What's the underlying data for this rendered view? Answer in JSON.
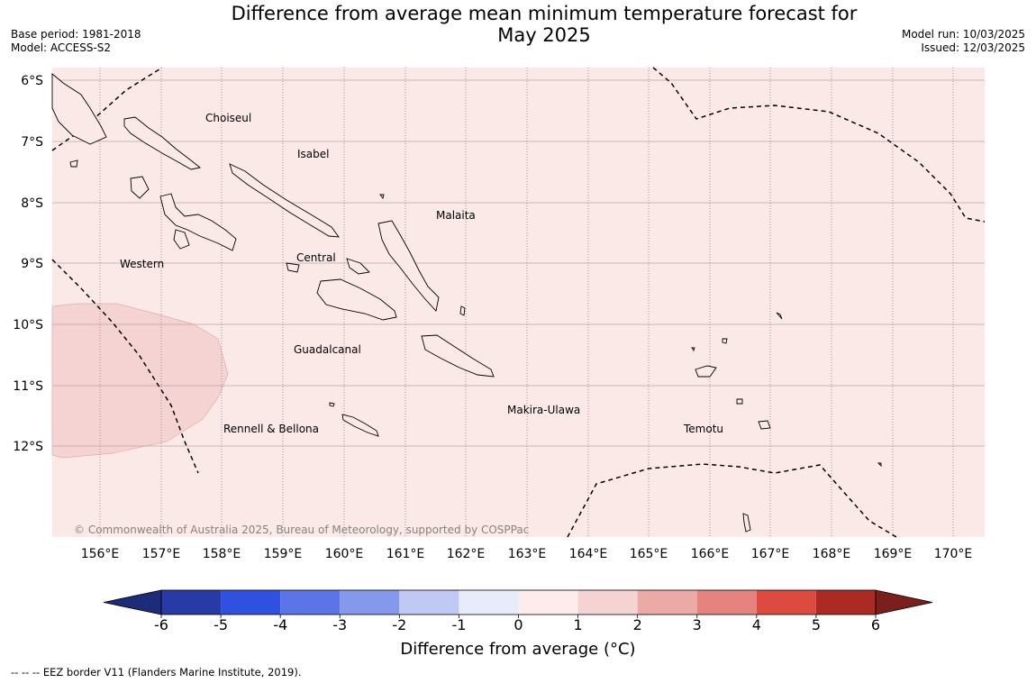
{
  "header": {
    "title_line1": "Difference from average mean minimum temperature forecast for",
    "title_line2": "May 2025",
    "base_period": "Base period: 1981-2018",
    "model": "Model: ACCESS-S2",
    "model_run": "Model run: 10/03/2025",
    "issued": "Issued: 12/03/2025"
  },
  "map": {
    "background_color": "#fbe9e8",
    "lat_labels": [
      "6°S",
      "7°S",
      "8°S",
      "9°S",
      "10°S",
      "11°S",
      "12°S"
    ],
    "lon_labels": [
      "156°E",
      "157°E",
      "158°E",
      "159°E",
      "160°E",
      "161°E",
      "162°E",
      "163°E",
      "164°E",
      "165°E",
      "166°E",
      "167°E",
      "168°E",
      "169°E",
      "170°E"
    ],
    "regions": {
      "choiseul": "Choiseul",
      "isabel": "Isabel",
      "malaita": "Malaita",
      "western": "Western",
      "central": "Central",
      "guadalcanal": "Guadalcanal",
      "makira": "Makira-Ulawa",
      "rennell": "Rennell & Bellona",
      "temotu": "Temotu"
    },
    "copyright": "© Commonwealth of Australia 2025, Bureau of Meteorology, supported by COSPPac",
    "anomaly_patch_color": "#f4d3d2"
  },
  "colorbar": {
    "ticks": [
      "-6",
      "-5",
      "-4",
      "-3",
      "-2",
      "-1",
      "0",
      "1",
      "2",
      "3",
      "4",
      "5",
      "6"
    ],
    "colors": [
      "#273aa6",
      "#3050e0",
      "#5b74e6",
      "#8599ec",
      "#c0c8f4",
      "#e8ebfa",
      "#fdeceb",
      "#f4d3d2",
      "#ecaaa7",
      "#e5847e",
      "#dd4a40",
      "#ac2a24"
    ],
    "under_color": "#1d2b78",
    "over_color": "#7a1f1b",
    "label": "Difference from average (°C)"
  },
  "footnote": "-- -- -- EEZ border V11 (Flanders Marine Institute, 2019)."
}
